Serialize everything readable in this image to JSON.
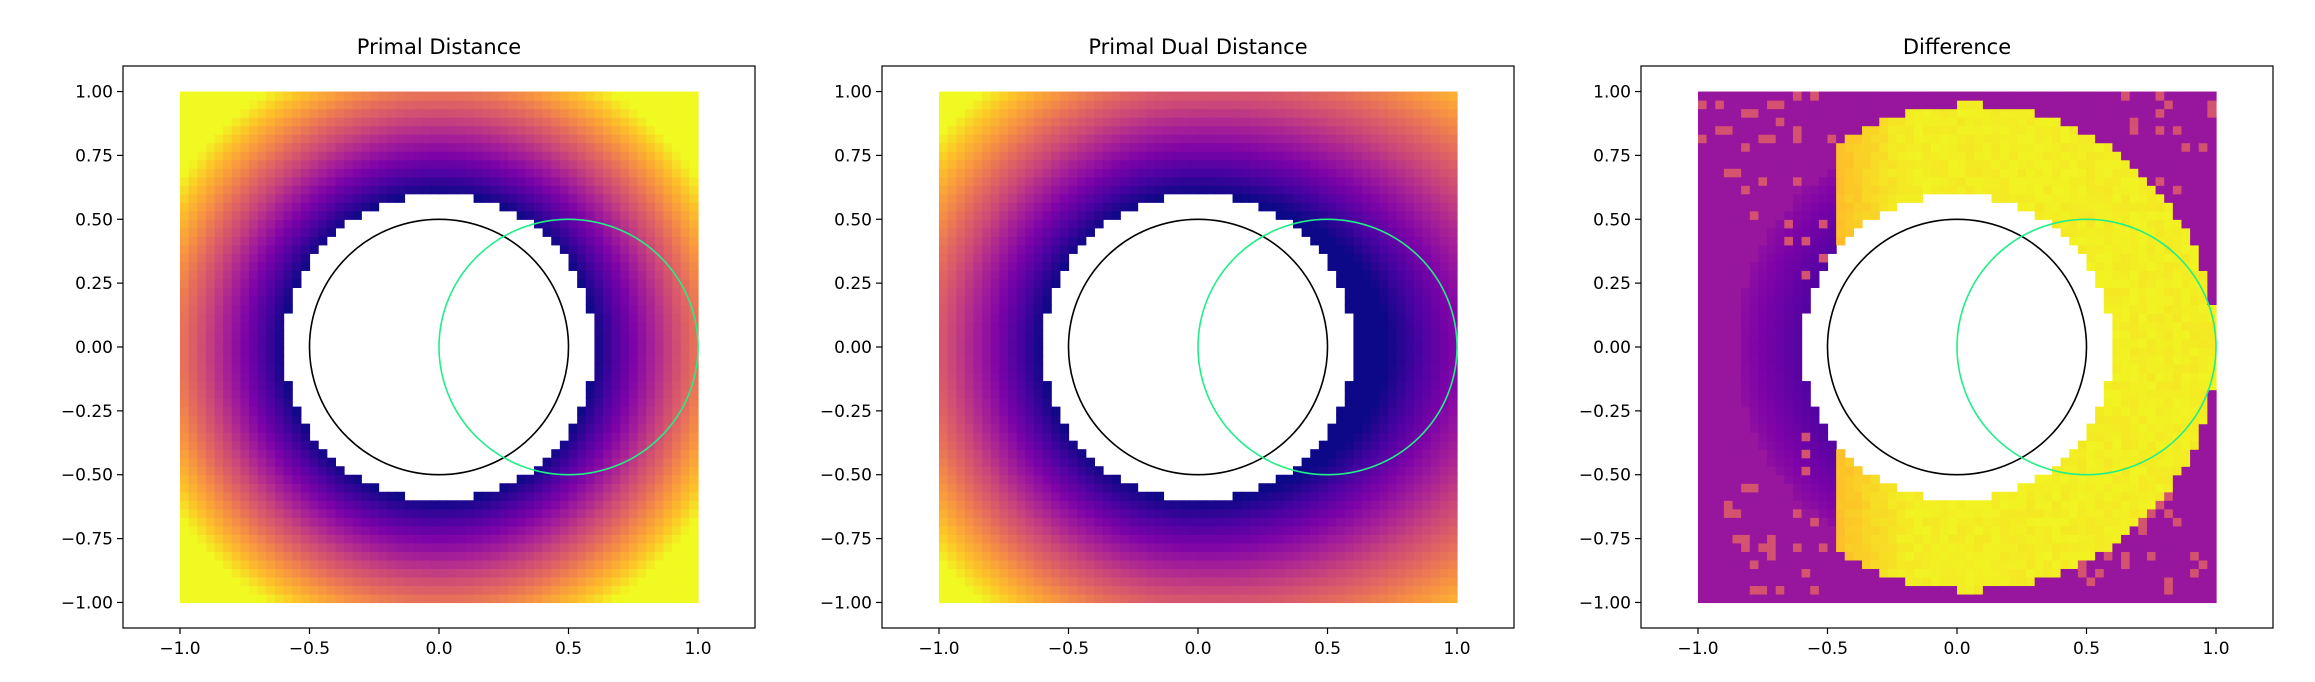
{
  "chart_data": [
    {
      "type": "heatmap",
      "title": "Primal Distance",
      "xlabel": "",
      "ylabel": "",
      "xlim": [
        -1.22,
        1.22
      ],
      "ylim": [
        -1.1,
        1.1
      ],
      "xticks": [
        "−1.0",
        "−0.5",
        "0.0",
        "0.5",
        "1.0"
      ],
      "yticks": [
        "−1.00",
        "−0.75",
        "−0.50",
        "−0.25",
        "0.00",
        "0.25",
        "0.50",
        "0.75",
        "1.00"
      ],
      "grid": false,
      "colormap": "plasma",
      "field": "primal",
      "domain": [
        -1.0,
        1.0
      ],
      "circles": [
        {
          "cx": 0.0,
          "cy": 0.0,
          "r": 0.5,
          "color": "#000000"
        },
        {
          "cx": 0.5,
          "cy": 0.0,
          "r": 0.5,
          "color": "#22ee88"
        }
      ]
    },
    {
      "type": "heatmap",
      "title": "Primal Dual Distance",
      "xlabel": "",
      "ylabel": "",
      "xlim": [
        -1.22,
        1.22
      ],
      "ylim": [
        -1.1,
        1.1
      ],
      "xticks": [
        "−1.0",
        "−0.5",
        "0.0",
        "0.5",
        "1.0"
      ],
      "yticks": [
        "−1.00",
        "−0.75",
        "−0.50",
        "−0.25",
        "0.00",
        "0.25",
        "0.50",
        "0.75",
        "1.00"
      ],
      "grid": false,
      "colormap": "plasma",
      "field": "primal_dual",
      "domain": [
        -1.0,
        1.0
      ],
      "circles": [
        {
          "cx": 0.0,
          "cy": 0.0,
          "r": 0.5,
          "color": "#000000"
        },
        {
          "cx": 0.5,
          "cy": 0.0,
          "r": 0.5,
          "color": "#22ee88"
        }
      ]
    },
    {
      "type": "heatmap",
      "title": "Difference",
      "xlabel": "",
      "ylabel": "",
      "xlim": [
        -1.22,
        1.22
      ],
      "ylim": [
        -1.1,
        1.1
      ],
      "xticks": [
        "−1.0",
        "−0.5",
        "0.0",
        "0.5",
        "1.0"
      ],
      "yticks": [
        "−1.00",
        "−0.75",
        "−0.50",
        "−0.25",
        "0.00",
        "0.25",
        "0.50",
        "0.75",
        "1.00"
      ],
      "grid": false,
      "colormap": "plasma",
      "field": "difference",
      "domain": [
        -1.0,
        1.0
      ],
      "circles": [
        {
          "cx": 0.0,
          "cy": 0.0,
          "r": 0.5,
          "color": "#000000"
        },
        {
          "cx": 0.5,
          "cy": 0.0,
          "r": 0.5,
          "color": "#22ee88"
        }
      ]
    }
  ]
}
